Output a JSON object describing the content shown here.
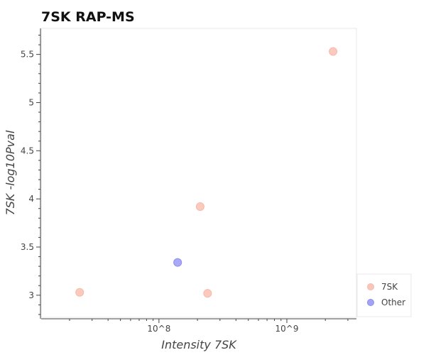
{
  "chart_data": {
    "type": "scatter",
    "title": "7SK RAP-MS",
    "xlabel": "Intensity 7SK",
    "ylabel": "7SK -log10Pval",
    "x_scale": "log",
    "xlim": [
      12000000,
      3500000000
    ],
    "ylim": [
      2.77,
      5.77
    ],
    "x_tick_labels": [
      "10^8",
      "10^9"
    ],
    "x_tick_values": [
      100000000,
      1000000000
    ],
    "y_ticks": [
      3,
      3.5,
      4,
      4.5,
      5,
      5.5
    ],
    "y_tick_labels": [
      "3",
      "3.5",
      "4",
      "4.5",
      "5",
      "5.5"
    ],
    "grid": false,
    "legend_position": "bottom-right, outside plot area",
    "series": [
      {
        "name": "7SK",
        "color": "#f9b8a8",
        "points": [
          {
            "x": 24000000,
            "y": 3.03
          },
          {
            "x": 210000000,
            "y": 3.92
          },
          {
            "x": 240000000,
            "y": 3.02
          },
          {
            "x": 2300000000,
            "y": 5.53
          }
        ]
      },
      {
        "name": "Other",
        "color": "#8c8cf4",
        "points": [
          {
            "x": 140000000,
            "y": 3.34
          }
        ]
      }
    ]
  }
}
